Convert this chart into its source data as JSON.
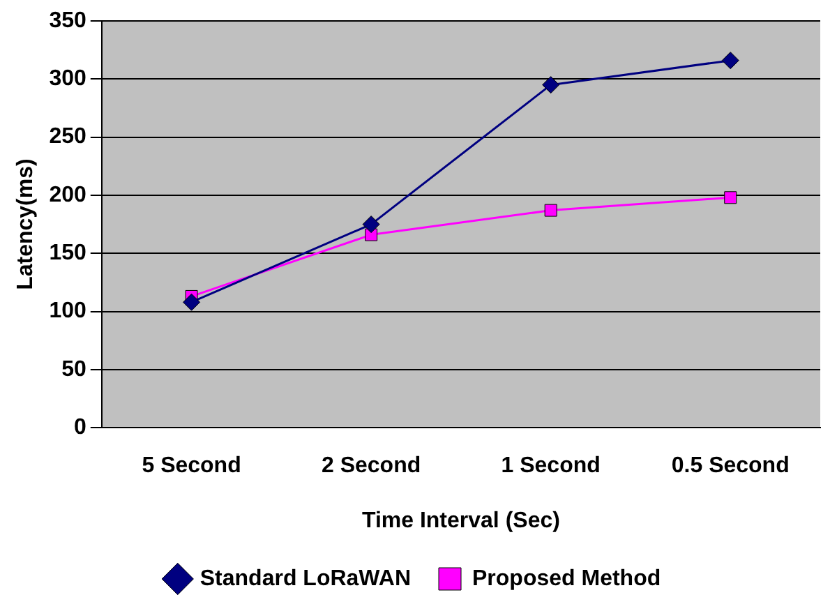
{
  "chart_data": {
    "type": "line",
    "xlabel": "Time Interval (Sec)",
    "ylabel": "Latency(ms)",
    "categories": [
      "5 Second",
      "2 Second",
      "1 Second",
      "0.5 Second"
    ],
    "series": [
      {
        "name": "Standard LoRaWAN",
        "color": "#000080",
        "marker": "diamond",
        "values": [
          108,
          175,
          295,
          316
        ]
      },
      {
        "name": "Proposed Method",
        "color": "#ff00ff",
        "marker": "square",
        "values": [
          113,
          166,
          187,
          198
        ]
      }
    ],
    "ylim": [
      0,
      350
    ],
    "yticks": [
      0,
      50,
      100,
      150,
      200,
      250,
      300,
      350
    ],
    "grid": "y",
    "legend": "bottom",
    "line_style": "solid"
  }
}
